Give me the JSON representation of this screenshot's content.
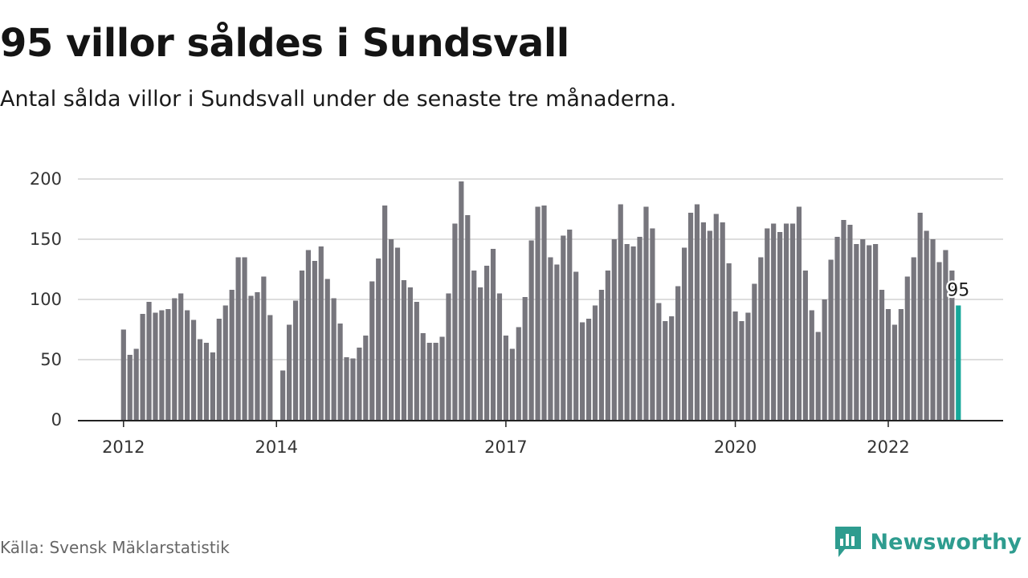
{
  "title": "95 villor såldes i Sundsvall",
  "subtitle": "Antal sålda villor i Sundsvall under de senaste tre månaderna.",
  "source": "Källa: Svensk Mäklarstatistik",
  "brand": {
    "name": "Newsworthy",
    "icon": "newsworthy-logo-icon"
  },
  "colors": {
    "bar": "#77767d",
    "highlight": "#16a89a",
    "grid": "#dddddd",
    "axis": "#222222",
    "brand": "#2e9c8f"
  },
  "chart_data": {
    "type": "bar",
    "series_start": "2012-01",
    "interval": "month",
    "x_ticks": [
      "2012",
      "2014",
      "2017",
      "2020",
      "2022"
    ],
    "y_ticks": [
      0,
      50,
      100,
      150,
      200
    ],
    "ylim": [
      0,
      200
    ],
    "grid": true,
    "values": [
      75,
      54,
      59,
      88,
      98,
      89,
      91,
      92,
      101,
      105,
      91,
      83,
      67,
      64,
      56,
      84,
      95,
      108,
      135,
      135,
      103,
      106,
      119,
      87,
      null,
      41,
      79,
      99,
      124,
      141,
      132,
      144,
      117,
      101,
      80,
      52,
      51,
      60,
      70,
      115,
      134,
      178,
      150,
      143,
      116,
      110,
      98,
      72,
      64,
      64,
      69,
      105,
      163,
      198,
      170,
      124,
      110,
      128,
      142,
      105,
      70,
      59,
      77,
      102,
      149,
      177,
      178,
      135,
      129,
      153,
      158,
      123,
      81,
      84,
      95,
      108,
      124,
      150,
      179,
      146,
      144,
      152,
      177,
      159,
      97,
      82,
      86,
      111,
      143,
      172,
      179,
      164,
      157,
      171,
      164,
      130,
      90,
      82,
      89,
      113,
      135,
      159,
      163,
      156,
      163,
      163,
      177,
      124,
      91,
      73,
      100,
      133,
      152,
      166,
      162,
      146,
      150,
      145,
      146,
      108,
      92,
      79,
      92,
      119,
      135,
      172,
      157,
      150,
      131,
      141,
      124,
      95
    ],
    "highlight_label": "95"
  }
}
